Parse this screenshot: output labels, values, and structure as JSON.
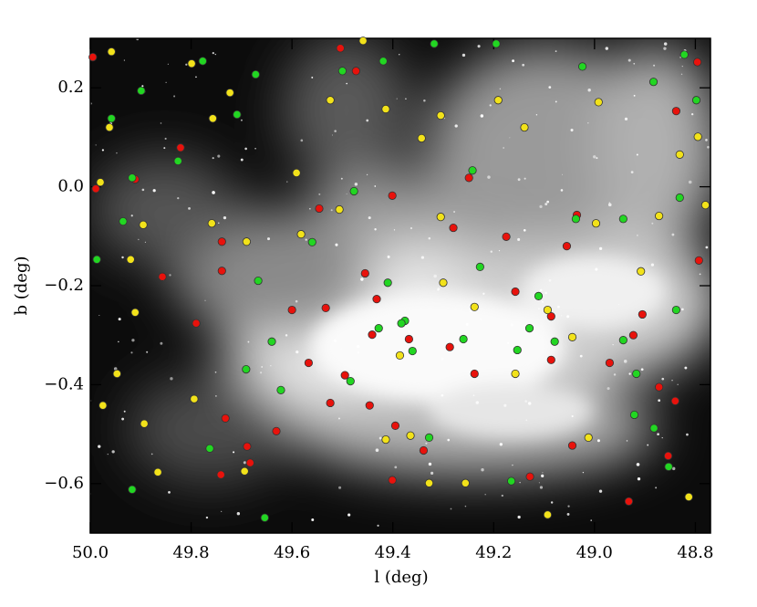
{
  "chart_data": {
    "type": "scatter",
    "xlabel": "l (deg)",
    "ylabel": "b (deg)",
    "xlim": [
      50.0,
      48.77
    ],
    "ylim": [
      -0.7,
      0.3
    ],
    "xticks": [
      {
        "value": 50.0,
        "label": "50.0"
      },
      49.8,
      49.6,
      49.4,
      49.2,
      {
        "value": 49.0,
        "label": "49.0"
      },
      48.8
    ],
    "yticks": [
      {
        "value": -0.6,
        "label": "−0.6"
      },
      {
        "value": -0.4,
        "label": "−0.4"
      },
      {
        "value": -0.2,
        "label": "−0.2"
      },
      {
        "value": 0.0,
        "label": "0.0"
      },
      0.2
    ],
    "series": [
      {
        "color": "#e8120c",
        "x": [
          49.995,
          49.989,
          49.911,
          49.821,
          49.857,
          49.739,
          49.739,
          49.79,
          49.732,
          49.741,
          49.689,
          49.631,
          49.546,
          49.6,
          49.533,
          49.455,
          49.473,
          49.401,
          49.432,
          49.441,
          49.495,
          49.524,
          49.446,
          49.395,
          49.368,
          49.339,
          49.287,
          49.238,
          49.28,
          49.249,
          49.175,
          49.157,
          49.055,
          49.035,
          49.086,
          49.086,
          49.044,
          48.97,
          48.923,
          48.905,
          48.872,
          48.838,
          48.796,
          48.793,
          48.84,
          48.854,
          48.932,
          49.128,
          49.401,
          49.683,
          49.567,
          49.504
        ],
        "y": [
          0.262,
          -0.004,
          0.015,
          0.079,
          -0.182,
          -0.111,
          -0.17,
          -0.276,
          -0.468,
          -0.582,
          -0.525,
          -0.494,
          -0.044,
          -0.249,
          -0.245,
          -0.175,
          0.234,
          -0.018,
          -0.227,
          -0.299,
          -0.381,
          -0.437,
          -0.442,
          -0.483,
          -0.308,
          -0.533,
          -0.324,
          -0.378,
          -0.083,
          0.018,
          -0.101,
          -0.212,
          -0.12,
          -0.057,
          -0.262,
          -0.35,
          -0.523,
          -0.356,
          -0.3,
          -0.258,
          -0.405,
          0.153,
          0.252,
          -0.149,
          -0.433,
          -0.544,
          -0.636,
          -0.586,
          -0.593,
          -0.558,
          -0.356,
          0.28
        ]
      },
      {
        "color": "#22d622",
        "x": [
          49.958,
          49.899,
          49.777,
          49.917,
          49.935,
          49.987,
          49.826,
          49.709,
          49.672,
          49.667,
          49.64,
          49.691,
          49.763,
          49.917,
          49.654,
          49.622,
          49.56,
          49.477,
          49.5,
          49.419,
          49.484,
          49.41,
          49.376,
          49.361,
          49.318,
          49.242,
          49.227,
          49.195,
          49.111,
          49.129,
          49.153,
          49.037,
          49.079,
          49.024,
          48.943,
          48.943,
          48.917,
          48.883,
          48.822,
          48.798,
          48.831,
          48.838,
          48.882,
          48.853,
          48.921,
          49.165,
          49.328,
          49.428,
          49.383,
          49.26
        ],
        "y": [
          0.138,
          0.194,
          0.254,
          0.018,
          -0.07,
          -0.147,
          0.052,
          0.146,
          0.227,
          -0.19,
          -0.313,
          -0.369,
          -0.529,
          -0.612,
          -0.669,
          -0.411,
          -0.112,
          -0.009,
          0.234,
          0.254,
          -0.393,
          -0.194,
          -0.271,
          -0.332,
          0.289,
          0.033,
          -0.162,
          0.289,
          -0.221,
          -0.286,
          -0.33,
          -0.065,
          -0.313,
          0.243,
          -0.065,
          -0.31,
          -0.378,
          0.212,
          0.267,
          0.175,
          -0.022,
          -0.249,
          -0.488,
          -0.566,
          -0.461,
          -0.595,
          -0.507,
          -0.286,
          -0.276,
          -0.308
        ]
      },
      {
        "color": "#f2e21a",
        "x": [
          49.958,
          49.962,
          49.98,
          49.895,
          49.92,
          49.911,
          49.947,
          49.975,
          49.893,
          49.866,
          49.799,
          49.757,
          49.723,
          49.69,
          49.759,
          49.794,
          49.694,
          49.591,
          49.582,
          49.524,
          49.506,
          49.459,
          49.414,
          49.343,
          49.305,
          49.305,
          49.3,
          49.365,
          49.414,
          49.256,
          49.238,
          49.191,
          49.139,
          49.157,
          49.093,
          48.992,
          48.997,
          49.012,
          49.044,
          48.908,
          48.872,
          48.831,
          48.795,
          48.78,
          48.813,
          49.093,
          49.328,
          49.386
        ],
        "y": [
          0.273,
          0.12,
          0.009,
          -0.077,
          -0.147,
          -0.254,
          -0.378,
          -0.442,
          -0.479,
          -0.577,
          0.249,
          0.138,
          0.19,
          -0.111,
          -0.074,
          -0.429,
          -0.575,
          0.028,
          -0.096,
          0.175,
          -0.046,
          0.295,
          0.157,
          0.098,
          0.144,
          -0.061,
          -0.194,
          -0.503,
          -0.511,
          -0.599,
          -0.243,
          0.175,
          0.12,
          -0.378,
          -0.249,
          0.171,
          -0.074,
          -0.507,
          -0.304,
          -0.171,
          -0.059,
          0.065,
          0.101,
          -0.037,
          -0.627,
          -0.663,
          -0.599,
          -0.341
        ]
      }
    ]
  }
}
